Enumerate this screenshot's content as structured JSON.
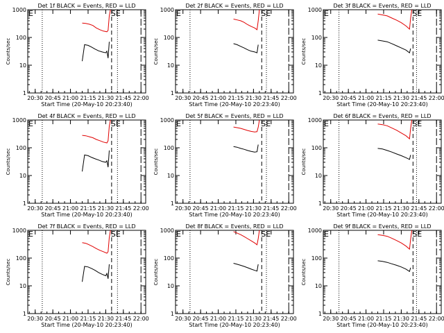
{
  "chart_data": [
    {
      "type": "line",
      "title": "Det 1f BLACK = Events, RED = LLD",
      "xlabel": "Start Time (20-May-10 20:23:40)",
      "ylabel": "Counts/sec",
      "x_ticks": [
        "20:30",
        "20:45",
        "21:00",
        "21:15",
        "21:30",
        "21:45",
        "22:00"
      ],
      "y_ticks": [
        "1",
        "10",
        "100",
        "1000"
      ],
      "ylim": [
        1,
        1000
      ],
      "yscale": "log",
      "xlim": [
        "20:23:40",
        "22:04:00"
      ],
      "markers": [
        "E",
        "SE"
      ],
      "vlines": {
        "dotted": "20:36",
        "dash": "21:35",
        "dashed2": "21:40",
        "long": "22:00"
      },
      "series": [
        {
          "name": "Events",
          "color": "#000000",
          "x": [
            "21:10",
            "21:12",
            "21:15",
            "21:18",
            "21:21",
            "21:24",
            "21:27",
            "21:30",
            "21:31",
            "21:32",
            "21:33"
          ],
          "y": [
            14,
            55,
            52,
            45,
            38,
            33,
            30,
            28,
            32,
            18,
            70
          ]
        },
        {
          "name": "LLD",
          "color": "#e00000",
          "x": [
            "21:10",
            "21:13",
            "21:16",
            "21:19",
            "21:22",
            "21:25",
            "21:28",
            "21:31",
            "21:32",
            "21:33",
            "21:34"
          ],
          "y": [
            330,
            320,
            300,
            270,
            220,
            190,
            170,
            160,
            180,
            600,
            1000
          ]
        }
      ]
    },
    {
      "type": "line",
      "title": "Det 2f BLACK = Events, RED = LLD",
      "xlabel": "Start Time (20-May-10 20:23:40)",
      "ylabel": "Counts/sec",
      "x_ticks": [
        "20:30",
        "20:45",
        "21:00",
        "21:15",
        "21:30",
        "21:45",
        "22:00"
      ],
      "y_ticks": [
        "1",
        "10",
        "100",
        "1000"
      ],
      "ylim": [
        1,
        1000
      ],
      "yscale": "log",
      "xlim": [
        "20:23:40",
        "22:04:00"
      ],
      "markers": [
        "E",
        "SE"
      ],
      "vlines": {
        "dotted": "20:36",
        "dash": "21:37",
        "dashed2": "21:41",
        "long": "22:00"
      },
      "series": [
        {
          "name": "Events",
          "color": "#000000",
          "x": [
            "21:13",
            "21:16",
            "21:19",
            "21:22",
            "21:25",
            "21:28",
            "21:31",
            "21:33",
            "21:34"
          ],
          "y": [
            60,
            55,
            48,
            42,
            36,
            32,
            30,
            28,
            55
          ]
        },
        {
          "name": "LLD",
          "color": "#e00000",
          "x": [
            "21:13",
            "21:16",
            "21:19",
            "21:22",
            "21:25",
            "21:28",
            "21:31",
            "21:33",
            "21:34",
            "21:35"
          ],
          "y": [
            460,
            430,
            400,
            350,
            290,
            250,
            220,
            190,
            400,
            1000
          ]
        }
      ]
    },
    {
      "type": "line",
      "title": "Det 3f BLACK = Events, RED = LLD",
      "xlabel": "Start Time (20-May-10 20:23:40)",
      "ylabel": "Counts/sec",
      "x_ticks": [
        "20:30",
        "20:45",
        "21:00",
        "21:15",
        "21:30",
        "21:45",
        "22:00"
      ],
      "y_ticks": [
        "1",
        "10",
        "100",
        "1000"
      ],
      "ylim": [
        1,
        1000
      ],
      "yscale": "log",
      "xlim": [
        "20:23:40",
        "22:04:00"
      ],
      "markers": [
        "E",
        "SE"
      ],
      "vlines": {
        "dotted": "20:37",
        "dash": "21:40",
        "dashed2": "21:43",
        "long": "22:00"
      },
      "series": [
        {
          "name": "Events",
          "color": "#000000",
          "x": [
            "21:10",
            "21:14",
            "21:18",
            "21:22",
            "21:26",
            "21:30",
            "21:34",
            "21:37",
            "21:38"
          ],
          "y": [
            80,
            75,
            70,
            60,
            50,
            42,
            35,
            28,
            40
          ]
        },
        {
          "name": "LLD",
          "color": "#e00000",
          "x": [
            "21:10",
            "21:14",
            "21:18",
            "21:22",
            "21:26",
            "21:30",
            "21:34",
            "21:37",
            "21:38",
            "21:39"
          ],
          "y": [
            700,
            650,
            600,
            500,
            420,
            340,
            260,
            200,
            500,
            1000
          ]
        }
      ]
    },
    {
      "type": "line",
      "title": "Det 4f BLACK = Events, RED = LLD",
      "xlabel": "Start Time (20-May-10 20:23:40)",
      "ylabel": "Counts/sec",
      "x_ticks": [
        "20:30",
        "20:45",
        "21:00",
        "21:15",
        "21:30",
        "21:45",
        "22:00"
      ],
      "y_ticks": [
        "1",
        "10",
        "100",
        "1000"
      ],
      "ylim": [
        1,
        1000
      ],
      "yscale": "log",
      "xlim": [
        "20:23:40",
        "22:04:00"
      ],
      "markers": [
        "E",
        "SE"
      ],
      "vlines": {
        "dotted": "20:36",
        "dash": "21:35",
        "dashed2": "21:40",
        "long": "22:00"
      },
      "series": [
        {
          "name": "Events",
          "color": "#000000",
          "x": [
            "21:10",
            "21:12",
            "21:15",
            "21:18",
            "21:21",
            "21:24",
            "21:27",
            "21:30",
            "21:31",
            "21:32",
            "21:33"
          ],
          "y": [
            14,
            55,
            52,
            45,
            40,
            36,
            32,
            30,
            34,
            20,
            80
          ]
        },
        {
          "name": "LLD",
          "color": "#e00000",
          "x": [
            "21:10",
            "21:13",
            "21:16",
            "21:19",
            "21:22",
            "21:25",
            "21:28",
            "21:31",
            "21:32",
            "21:33",
            "21:34"
          ],
          "y": [
            280,
            270,
            250,
            230,
            200,
            180,
            160,
            150,
            180,
            600,
            1000
          ]
        }
      ]
    },
    {
      "type": "line",
      "title": "Det 5f BLACK = Events, RED = LLD",
      "xlabel": "Start Time (20-May-10 20:23:40)",
      "ylabel": "Counts/sec",
      "x_ticks": [
        "20:30",
        "20:45",
        "21:00",
        "21:15",
        "21:30",
        "21:45",
        "22:00"
      ],
      "y_ticks": [
        "1",
        "10",
        "100",
        "1000"
      ],
      "ylim": [
        1,
        1000
      ],
      "yscale": "log",
      "xlim": [
        "20:23:40",
        "22:04:00"
      ],
      "markers": [
        "E",
        "SE"
      ],
      "vlines": {
        "dotted": "20:36",
        "dash": "21:37",
        "dashed2": "21:41",
        "long": "22:00"
      },
      "series": [
        {
          "name": "Events",
          "color": "#000000",
          "x": [
            "21:13",
            "21:16",
            "21:19",
            "21:22",
            "21:25",
            "21:28",
            "21:31",
            "21:33",
            "21:34"
          ],
          "y": [
            110,
            105,
            95,
            88,
            80,
            74,
            70,
            72,
            130
          ]
        },
        {
          "name": "LLD",
          "color": "#e00000",
          "x": [
            "21:13",
            "21:16",
            "21:19",
            "21:22",
            "21:25",
            "21:28",
            "21:31",
            "21:33",
            "21:34",
            "21:35"
          ],
          "y": [
            560,
            530,
            500,
            460,
            420,
            390,
            370,
            380,
            550,
            1000
          ]
        }
      ]
    },
    {
      "type": "line",
      "title": "Det 6f BLACK = Events, RED = LLD",
      "xlabel": "Start Time (20-May-10 20:23:40)",
      "ylabel": "Counts/sec",
      "x_ticks": [
        "20:30",
        "20:45",
        "21:00",
        "21:15",
        "21:30",
        "21:45",
        "22:00"
      ],
      "y_ticks": [
        "1",
        "10",
        "100",
        "1000"
      ],
      "ylim": [
        1,
        1000
      ],
      "yscale": "log",
      "xlim": [
        "20:23:40",
        "22:04:00"
      ],
      "markers": [
        "E",
        "SE"
      ],
      "vlines": {
        "dotted": "20:37",
        "dash": "21:40",
        "dashed2": "21:43",
        "long": "22:00"
      },
      "series": [
        {
          "name": "Events",
          "color": "#000000",
          "x": [
            "21:10",
            "21:14",
            "21:18",
            "21:22",
            "21:26",
            "21:30",
            "21:34",
            "21:37",
            "21:38"
          ],
          "y": [
            95,
            90,
            80,
            70,
            60,
            52,
            44,
            38,
            55
          ]
        },
        {
          "name": "LLD",
          "color": "#e00000",
          "x": [
            "21:10",
            "21:14",
            "21:18",
            "21:22",
            "21:26",
            "21:30",
            "21:34",
            "21:37",
            "21:38",
            "21:39"
          ],
          "y": [
            720,
            680,
            620,
            520,
            430,
            340,
            270,
            210,
            500,
            1000
          ]
        }
      ]
    },
    {
      "type": "line",
      "title": "Det 7f BLACK = Events, RED = LLD",
      "xlabel": "Start Time (20-May-10 20:23:40)",
      "ylabel": "Counts/sec",
      "x_ticks": [
        "20:30",
        "20:45",
        "21:00",
        "21:15",
        "21:30",
        "21:45",
        "22:00"
      ],
      "y_ticks": [
        "1",
        "10",
        "100",
        "1000"
      ],
      "ylim": [
        1,
        1000
      ],
      "yscale": "log",
      "xlim": [
        "20:23:40",
        "22:04:00"
      ],
      "markers": [
        "E",
        "SE"
      ],
      "vlines": {
        "dotted": "20:36",
        "dash": "21:35",
        "dashed2": "21:40",
        "long": "22:00"
      },
      "series": [
        {
          "name": "Events",
          "color": "#000000",
          "x": [
            "21:10",
            "21:12",
            "21:15",
            "21:18",
            "21:21",
            "21:24",
            "21:27",
            "21:30",
            "21:31",
            "21:32",
            "21:33"
          ],
          "y": [
            14,
            50,
            48,
            42,
            36,
            30,
            26,
            23,
            28,
            18,
            60
          ]
        },
        {
          "name": "LLD",
          "color": "#e00000",
          "x": [
            "21:10",
            "21:13",
            "21:16",
            "21:19",
            "21:22",
            "21:25",
            "21:28",
            "21:31",
            "21:32",
            "21:33",
            "21:34"
          ],
          "y": [
            360,
            340,
            300,
            260,
            220,
            190,
            170,
            150,
            170,
            550,
            1000
          ]
        }
      ]
    },
    {
      "type": "line",
      "title": "Det 8f BLACK = Events, RED = LLD",
      "xlabel": "Start Time (20-May-10 20:23:40)",
      "ylabel": "Counts/sec",
      "x_ticks": [
        "20:30",
        "20:45",
        "21:00",
        "21:15",
        "21:30",
        "21:45",
        "22:00"
      ],
      "y_ticks": [
        "1",
        "10",
        "100",
        "1000"
      ],
      "ylim": [
        1,
        1000
      ],
      "yscale": "log",
      "xlim": [
        "20:23:40",
        "22:04:00"
      ],
      "markers": [
        "E",
        "SE"
      ],
      "vlines": {
        "dotted": "20:36",
        "dash": "21:37",
        "dashed2": "21:41",
        "long": "22:00"
      },
      "series": [
        {
          "name": "Events",
          "color": "#000000",
          "x": [
            "21:13",
            "21:16",
            "21:19",
            "21:22",
            "21:25",
            "21:28",
            "21:31",
            "21:33",
            "21:34"
          ],
          "y": [
            65,
            60,
            55,
            50,
            45,
            40,
            36,
            34,
            60
          ]
        },
        {
          "name": "LLD",
          "color": "#e00000",
          "x": [
            "21:13",
            "21:16",
            "21:19",
            "21:22",
            "21:25",
            "21:28",
            "21:31",
            "21:33",
            "21:34",
            "21:35"
          ],
          "y": [
            900,
            800,
            700,
            600,
            500,
            420,
            350,
            300,
            500,
            1000
          ]
        }
      ]
    },
    {
      "type": "line",
      "title": "Det 9f BLACK = Events, RED = LLD",
      "xlabel": "Start Time (20-May-10 20:23:40)",
      "ylabel": "Counts/sec",
      "x_ticks": [
        "20:30",
        "20:45",
        "21:00",
        "21:15",
        "21:30",
        "21:45",
        "22:00"
      ],
      "y_ticks": [
        "1",
        "10",
        "100",
        "1000"
      ],
      "ylim": [
        1,
        1000
      ],
      "yscale": "log",
      "xlim": [
        "20:23:40",
        "22:04:00"
      ],
      "markers": [
        "E",
        "SE"
      ],
      "vlines": {
        "dotted": "20:37",
        "dash": "21:40",
        "dashed2": "21:43",
        "long": "22:00"
      },
      "series": [
        {
          "name": "Events",
          "color": "#000000",
          "x": [
            "21:10",
            "21:14",
            "21:18",
            "21:22",
            "21:26",
            "21:30",
            "21:34",
            "21:37",
            "21:38"
          ],
          "y": [
            80,
            76,
            70,
            62,
            55,
            48,
            40,
            33,
            45
          ]
        },
        {
          "name": "LLD",
          "color": "#e00000",
          "x": [
            "21:10",
            "21:14",
            "21:18",
            "21:22",
            "21:26",
            "21:30",
            "21:34",
            "21:37",
            "21:38",
            "21:39"
          ],
          "y": [
            700,
            660,
            610,
            520,
            430,
            350,
            270,
            210,
            480,
            1000
          ]
        }
      ]
    }
  ]
}
